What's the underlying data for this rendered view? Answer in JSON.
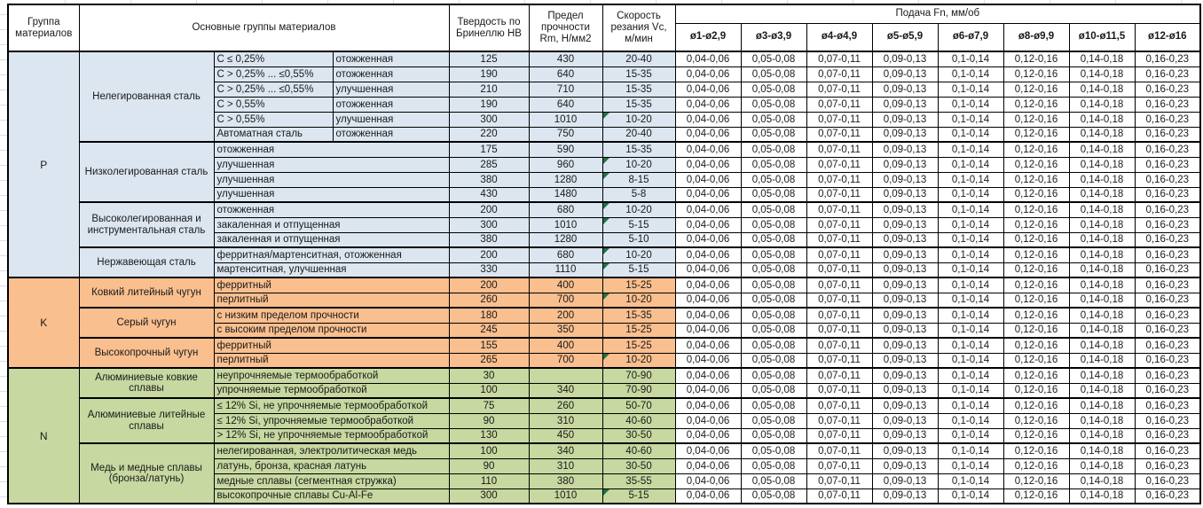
{
  "header": {
    "group_col": "Группа материалов",
    "main_groups_col": "Основные группы материалов",
    "hardness_col": "Твердость по Бринеллю HB",
    "strength_col": "Предел прочности Rm, Н/мм2",
    "speed_col": "Скорость резания Vc, м/мин",
    "feed_title": "Подача Fn, мм/об",
    "feed_columns": [
      "ø1-ø2,9",
      "ø3-ø3,9",
      "ø4-ø4,9",
      "ø5-ø5,9",
      "ø6-ø7,9",
      "ø8-ø9,9",
      "ø10-ø11,5",
      "ø12-ø16"
    ]
  },
  "feed_values": [
    "0,04-0,06",
    "0,05-0,08",
    "0,07-0,11",
    "0,09-0,13",
    "0,1-0,14",
    "0,12-0,16",
    "0,14-0,18",
    "0,16-0,23"
  ],
  "colors": {
    "group_p": "#dce6f1",
    "group_k": "#fabf8f",
    "group_n": "#c7d8a0",
    "error_marker": "#217346",
    "grid_border": "#000000"
  },
  "groups": [
    {
      "letter": "P",
      "color": "#dce6f1",
      "subgroups": [
        {
          "name": "Нелегированная сталь",
          "rows": [
            {
              "c1": "C ≤ 0,25%",
              "c2": "отожженная",
              "hb": "125",
              "rm": "430",
              "vc": "20-40",
              "marker": false
            },
            {
              "c1": "C > 0,25% ... ≤0,55%",
              "c2": "отожженная",
              "hb": "190",
              "rm": "640",
              "vc": "15-35",
              "marker": false
            },
            {
              "c1": "C > 0,25% ... ≤0,55%",
              "c2": "улучшенная",
              "hb": "210",
              "rm": "710",
              "vc": "15-35",
              "marker": false
            },
            {
              "c1": "C > 0,55%",
              "c2": "отожженная",
              "hb": "190",
              "rm": "640",
              "vc": "15-35",
              "marker": false
            },
            {
              "c1": "C > 0,55%",
              "c2": "улучшенная",
              "hb": "300",
              "rm": "1010",
              "vc": "10-20",
              "marker": true
            },
            {
              "c1": "Автоматная сталь",
              "c2": "отожженная",
              "hb": "220",
              "rm": "750",
              "vc": "20-40",
              "marker": false
            }
          ]
        },
        {
          "name": "Низколегированная сталь",
          "rows": [
            {
              "desc": "отожженная",
              "hb": "175",
              "rm": "590",
              "vc": "15-35",
              "marker": false
            },
            {
              "desc": "улучшенная",
              "hb": "285",
              "rm": "960",
              "vc": "10-20",
              "marker": true
            },
            {
              "desc": "улучшенная",
              "hb": "380",
              "rm": "1280",
              "vc": "8-15",
              "marker": true
            },
            {
              "desc": "улучшенная",
              "hb": "430",
              "rm": "1480",
              "vc": "5-8",
              "marker": false
            }
          ]
        },
        {
          "name": "Высоколегированная и инструментальная сталь",
          "rows": [
            {
              "desc": "отожженная",
              "hb": "200",
              "rm": "680",
              "vc": "10-20",
              "marker": true
            },
            {
              "desc": "закаленная и отпущенная",
              "hb": "300",
              "rm": "1010",
              "vc": "5-15",
              "marker": true
            },
            {
              "desc": "закаленная и отпущенная",
              "hb": "380",
              "rm": "1280",
              "vc": "5-10",
              "marker": false
            }
          ]
        },
        {
          "name": "Нержавеющая сталь",
          "rows": [
            {
              "desc": "ферритная/мартенситная, отожженная",
              "hb": "200",
              "rm": "680",
              "vc": "10-20",
              "marker": true
            },
            {
              "desc": "мартенситная, улучшенная",
              "hb": "330",
              "rm": "1110",
              "vc": "5-15",
              "marker": true
            }
          ]
        }
      ]
    },
    {
      "letter": "K",
      "color": "#fabf8f",
      "subgroups": [
        {
          "name": "Ковкий литейный чугун",
          "rows": [
            {
              "desc": "ферритный",
              "hb": "200",
              "rm": "400",
              "vc": "15-25",
              "marker": false
            },
            {
              "desc": "перлитный",
              "hb": "260",
              "rm": "700",
              "vc": "10-20",
              "marker": true
            }
          ]
        },
        {
          "name": "Серый чугун",
          "rows": [
            {
              "desc": "с низким пределом прочности",
              "hb": "180",
              "rm": "200",
              "vc": "15-35",
              "marker": false
            },
            {
              "desc": "с высоким пределом прочности",
              "hb": "245",
              "rm": "350",
              "vc": "15-25",
              "marker": false
            }
          ]
        },
        {
          "name": "Высокопрочный чугун",
          "rows": [
            {
              "desc": "ферритный",
              "hb": "155",
              "rm": "400",
              "vc": "15-25",
              "marker": false
            },
            {
              "desc": "перлитный",
              "hb": "265",
              "rm": "700",
              "vc": "10-20",
              "marker": true
            }
          ]
        }
      ]
    },
    {
      "letter": "N",
      "color": "#c7d8a0",
      "subgroups": [
        {
          "name": "Алюминиевые ковкие сплавы",
          "rows": [
            {
              "desc": "неупрочняемые термообработкой",
              "hb": "30",
              "rm": "",
              "vc": "70-90",
              "marker": false
            },
            {
              "desc": "упрочняемые термообработкой",
              "hb": "100",
              "rm": "340",
              "vc": "70-90",
              "marker": false
            }
          ]
        },
        {
          "name": "Алюминиевые литейные сплавы",
          "rows": [
            {
              "desc": "≤ 12% Si, не упрочняемые термообработкой",
              "hb": "75",
              "rm": "260",
              "vc": "50-70",
              "marker": false
            },
            {
              "desc": "≤ 12% Si, упрочняемые термообработкой",
              "hb": "90",
              "rm": "310",
              "vc": "40-60",
              "marker": false
            },
            {
              "desc": "> 12% Si, не упрочняемые термообработкой",
              "hb": "130",
              "rm": "450",
              "vc": "30-50",
              "marker": false
            }
          ]
        },
        {
          "name": "Медь и медные сплавы (бронза/латунь)",
          "rows": [
            {
              "desc": "нелегированная, электролитическая медь",
              "hb": "100",
              "rm": "340",
              "vc": "40-60",
              "marker": false
            },
            {
              "desc": "латунь, бронза, красная латунь",
              "hb": "90",
              "rm": "310",
              "vc": "30-50",
              "marker": false
            },
            {
              "desc": "медные сплавы (сегментная стружка)",
              "hb": "110",
              "rm": "380",
              "vc": "35-55",
              "marker": false
            },
            {
              "desc": "высокопрочные сплавы Cu-Al-Fe",
              "hb": "300",
              "rm": "1010",
              "vc": "5-15",
              "marker": true
            }
          ]
        }
      ]
    }
  ]
}
